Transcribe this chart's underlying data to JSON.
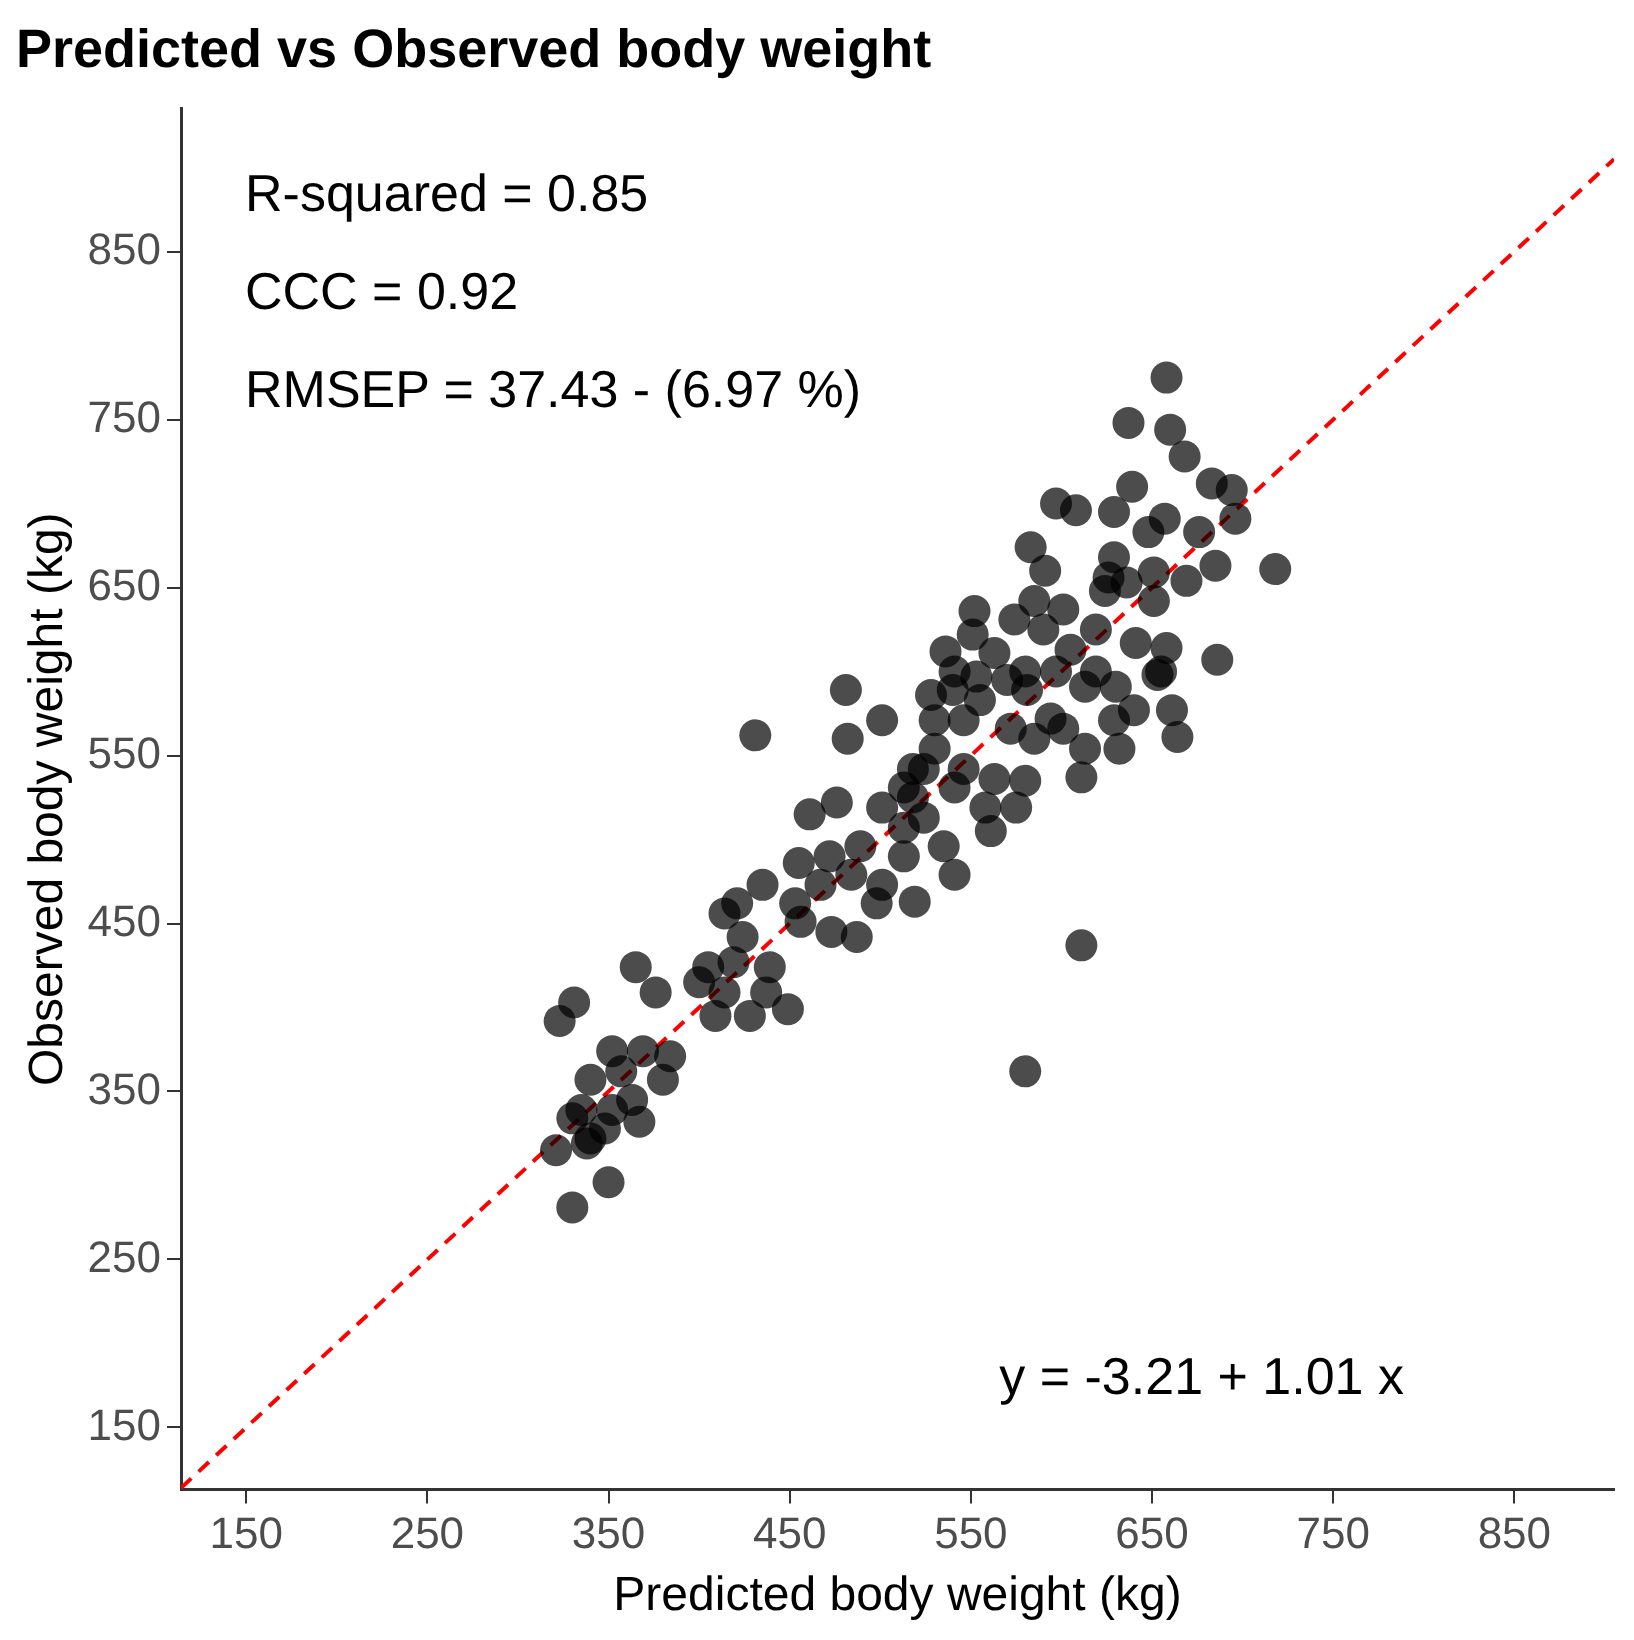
{
  "chart_data": {
    "type": "scatter",
    "title": "Predicted vs Observed body weight",
    "xlabel": "Predicted body weight (kg)",
    "ylabel": "Observed body weight (kg)",
    "annotations": [
      "R-squared = 0.85",
      "CCC = 0.92",
      "RMSEP = 37.43 - (6.97 %)",
      "y = -3.21 + 1.01 x"
    ],
    "xlim": [
      114,
      905
    ],
    "ylim": [
      113,
      935
    ],
    "xticks": [
      150,
      250,
      350,
      450,
      550,
      650,
      750,
      850
    ],
    "yticks": [
      150,
      250,
      350,
      450,
      550,
      650,
      750,
      850
    ],
    "grid": false,
    "legend": false,
    "marker": "circle",
    "series": [
      {
        "type": "scatter",
        "color": "#000000",
        "x": [
          658,
          637,
          660,
          668,
          597,
          608,
          639,
          629,
          683,
          694,
          696,
          718,
          685,
          669,
          651,
          648,
          657,
          676,
          583,
          591,
          629,
          624,
          601,
          590,
          574,
          551,
          563,
          580,
          597,
          619,
          630,
          641,
          658,
          655,
          686,
          653,
          629,
          664,
          611,
          580,
          594,
          572,
          555,
          540,
          528,
          536,
          546,
          530,
          524,
          541,
          558,
          575,
          561,
          535,
          541,
          524,
          513,
          501,
          513,
          501,
          481,
          482,
          431,
          461,
          476,
          489,
          472,
          455,
          467,
          484,
          501,
          519,
          498,
          487,
          473,
          456,
          453,
          435,
          421,
          414,
          424,
          419,
          405,
          400,
          414,
          409,
          428,
          439,
          449,
          437,
          611,
          580,
          365,
          376,
          331,
          323,
          352,
          369,
          384,
          380,
          357,
          340,
          363,
          352,
          335,
          330,
          348,
          367,
          340,
          321,
          338,
          350,
          330,
          601,
          585,
          613,
          632,
          581,
          570,
          553,
          541,
          530,
          513,
          518,
          546,
          563,
          518,
          636,
          626,
          619,
          605,
          651,
          640,
          661,
          552,
          585,
          613
        ],
        "values": [
          775,
          748,
          744,
          728,
          700,
          696,
          710,
          695,
          712,
          708,
          691,
          661,
          663,
          654,
          642,
          683,
          691,
          683,
          674,
          660,
          668,
          648,
          637,
          625,
          631,
          622,
          611,
          600,
          600,
          600,
          591,
          617,
          614,
          600,
          607,
          598,
          571,
          561,
          537,
          535,
          572,
          566,
          583,
          589,
          586,
          612,
          571,
          554,
          542,
          531,
          519,
          519,
          505,
          496,
          479,
          513,
          507,
          519,
          531,
          571,
          589,
          560,
          562,
          515,
          522,
          496,
          490,
          486,
          473,
          479,
          473,
          463,
          462,
          442,
          445,
          451,
          462,
          473,
          462,
          456,
          442,
          427,
          424,
          415,
          409,
          395,
          395,
          424,
          399,
          409,
          437,
          362,
          424,
          409,
          403,
          392,
          374,
          374,
          371,
          357,
          362,
          357,
          345,
          339,
          339,
          334,
          328,
          332,
          322,
          315,
          319,
          296,
          281,
          566,
          560,
          554,
          554,
          589,
          595,
          597,
          600,
          571,
          490,
          542,
          542,
          536,
          525,
          653,
          656,
          625,
          613,
          659,
          577,
          577,
          636,
          642,
          591
        ]
      },
      {
        "type": "line",
        "color": "#ff0000",
        "line_style": "dashed",
        "marker": "none",
        "x": [
          114,
          905
        ],
        "values": [
          114,
          905
        ]
      }
    ]
  }
}
